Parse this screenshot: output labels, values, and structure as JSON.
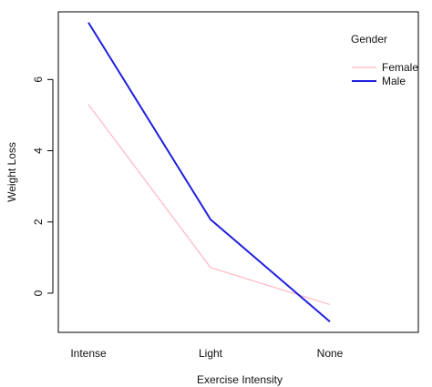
{
  "chart_data": {
    "type": "line",
    "xlabel": "Exercise Intensity",
    "ylabel": "Weight Loss",
    "categories": [
      "Intense",
      "Light",
      "None"
    ],
    "yticks": [
      0,
      2,
      4,
      6
    ],
    "ylim": [
      -1.1,
      7.9
    ],
    "legend": {
      "title": "Gender",
      "position": "top-right"
    },
    "series": [
      {
        "name": "Female",
        "color": "#ffc0cb",
        "values": [
          5.3,
          0.72,
          -0.32
        ]
      },
      {
        "name": "Male",
        "color": "#1f1fdd",
        "values": [
          7.6,
          2.07,
          -0.8
        ]
      }
    ]
  }
}
